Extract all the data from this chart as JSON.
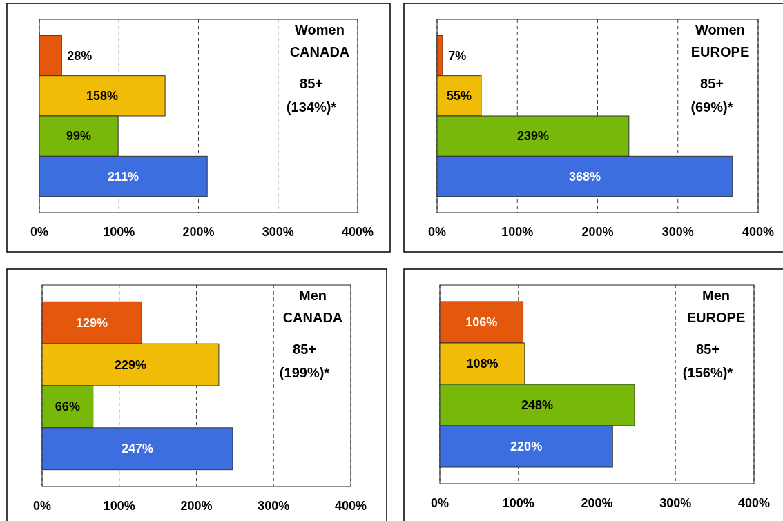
{
  "chart_data": [
    {
      "type": "bar",
      "orientation": "horizontal",
      "title": "Women",
      "subtitle": "CANADA",
      "annotations": [
        "85+",
        "(134%)*"
      ],
      "categories": [
        null,
        null,
        null,
        null
      ],
      "values": [
        28,
        158,
        99,
        211
      ],
      "value_labels": [
        "28%",
        "158%",
        "99%",
        "211%"
      ],
      "colors": [
        "#e4580e",
        "#f0bc08",
        "#78b80a",
        "#3c6ee0"
      ],
      "xlim": [
        0,
        400
      ],
      "xticks": [
        {
          "value": 0,
          "label": "0%"
        },
        {
          "value": 100,
          "label": "100%"
        },
        {
          "value": 200,
          "label": "200%"
        },
        {
          "value": 300,
          "label": "300%"
        },
        {
          "value": 400,
          "label": "400%"
        }
      ],
      "grid": "x"
    },
    {
      "type": "bar",
      "orientation": "horizontal",
      "title": "Women",
      "subtitle": "EUROPE",
      "annotations": [
        "85+",
        "(69%)*"
      ],
      "categories": [
        null,
        null,
        null,
        null
      ],
      "values": [
        7,
        55,
        239,
        368
      ],
      "value_labels": [
        "7%",
        "55%",
        "239%",
        "368%"
      ],
      "colors": [
        "#e4580e",
        "#f0bc08",
        "#78b80a",
        "#3c6ee0"
      ],
      "xlim": [
        0,
        400
      ],
      "xticks": [
        {
          "value": 0,
          "label": "0%"
        },
        {
          "value": 100,
          "label": "100%"
        },
        {
          "value": 200,
          "label": "200%"
        },
        {
          "value": 300,
          "label": "300%"
        },
        {
          "value": 400,
          "label": "400%"
        }
      ],
      "grid": "x"
    },
    {
      "type": "bar",
      "orientation": "horizontal",
      "title": "Men",
      "subtitle": "CANADA",
      "annotations": [
        "85+",
        "(199%)*"
      ],
      "categories": [
        null,
        null,
        null,
        null
      ],
      "values": [
        129,
        229,
        66,
        247
      ],
      "value_labels": [
        "129%",
        "229%",
        "66%",
        "247%"
      ],
      "colors": [
        "#e4580e",
        "#f0bc08",
        "#78b80a",
        "#3c6ee0"
      ],
      "xlim": [
        0,
        400
      ],
      "xticks": [
        {
          "value": 0,
          "label": "0%"
        },
        {
          "value": 100,
          "label": "100%"
        },
        {
          "value": 200,
          "label": "200%"
        },
        {
          "value": 300,
          "label": "300%"
        },
        {
          "value": 400,
          "label": "400%"
        }
      ],
      "grid": "x"
    },
    {
      "type": "bar",
      "orientation": "horizontal",
      "title": "Men",
      "subtitle": "EUROPE",
      "annotations": [
        "85+",
        "(156%)*"
      ],
      "categories": [
        null,
        null,
        null,
        null
      ],
      "values": [
        106,
        108,
        248,
        220
      ],
      "value_labels": [
        "106%",
        "108%",
        "248%",
        "220%"
      ],
      "colors": [
        "#e4580e",
        "#f0bc08",
        "#78b80a",
        "#3c6ee0"
      ],
      "xlim": [
        0,
        400
      ],
      "xticks": [
        {
          "value": 0,
          "label": "0%"
        },
        {
          "value": 100,
          "label": "100%"
        },
        {
          "value": 200,
          "label": "200%"
        },
        {
          "value": 300,
          "label": "300%"
        },
        {
          "value": 400,
          "label": "400%"
        }
      ],
      "grid": "x"
    }
  ]
}
